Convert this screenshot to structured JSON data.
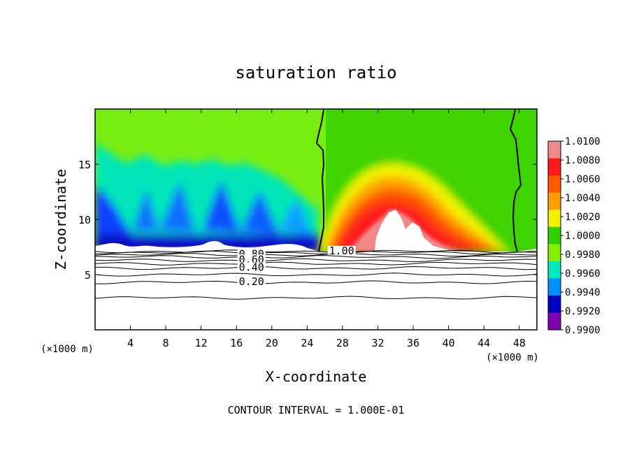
{
  "chart_data": {
    "type": "heatmap",
    "title": "saturation ratio",
    "xlabel": "X-coordinate",
    "ylabel": "Z-coordinate",
    "x_unit_label": "(×1000 m)",
    "z_unit_label": "(×1000 m)",
    "xlim": [
      0,
      50
    ],
    "ylim": [
      0,
      20
    ],
    "x_ticks": [
      4,
      8,
      12,
      16,
      20,
      24,
      28,
      32,
      36,
      40,
      44,
      48
    ],
    "x_tick_labels": [
      "4",
      "8",
      "12",
      "16",
      "20",
      "24",
      "28",
      "32",
      "36",
      "40",
      "44",
      "48"
    ],
    "y_ticks": [
      5,
      10,
      15
    ],
    "y_tick_labels": [
      "5",
      "10",
      "15"
    ],
    "colorbar": {
      "min": 0.99,
      "max": 1.01,
      "tick_labels": [
        "1.0100",
        "1.0080",
        "1.0060",
        "1.0040",
        "1.0020",
        "1.0000",
        "0.9980",
        "0.9960",
        "0.9940",
        "0.9920",
        "0.9900"
      ],
      "colors": [
        "#f08a8a",
        "#ff1a1a",
        "#ff5a00",
        "#ffa000",
        "#f5f000",
        "#30d000",
        "#80f000",
        "#00e8c0",
        "#0090ff",
        "#0000c0",
        "#8000b0"
      ]
    },
    "contour_interval_text": "CONTOUR INTERVAL = 1.000E-01",
    "contour_labels": [
      {
        "text": "1.00",
        "x": 27.9,
        "z": 7.1
      },
      {
        "text": "0.80",
        "x": 17.7,
        "z": 6.8
      },
      {
        "text": "0.60",
        "x": 17.7,
        "z": 6.3
      },
      {
        "text": "0.40",
        "x": 17.7,
        "z": 5.6
      },
      {
        "text": "0.20",
        "x": 17.7,
        "z": 4.3
      }
    ],
    "contour_levels": [
      {
        "value": "1.00",
        "z": 7.1
      },
      {
        "value": "0.90",
        "z": 7.0
      },
      {
        "value": "0.80",
        "z": 6.8
      },
      {
        "value": "0.70",
        "z": 6.6
      },
      {
        "value": "0.60",
        "z": 6.3
      },
      {
        "value": "0.50",
        "z": 6.0
      },
      {
        "value": "0.40",
        "z": 5.6
      },
      {
        "value": "0.30",
        "z": 5.0
      },
      {
        "value": "0.20",
        "z": 4.3
      },
      {
        "value": "0.10",
        "z": 2.9
      }
    ]
  }
}
